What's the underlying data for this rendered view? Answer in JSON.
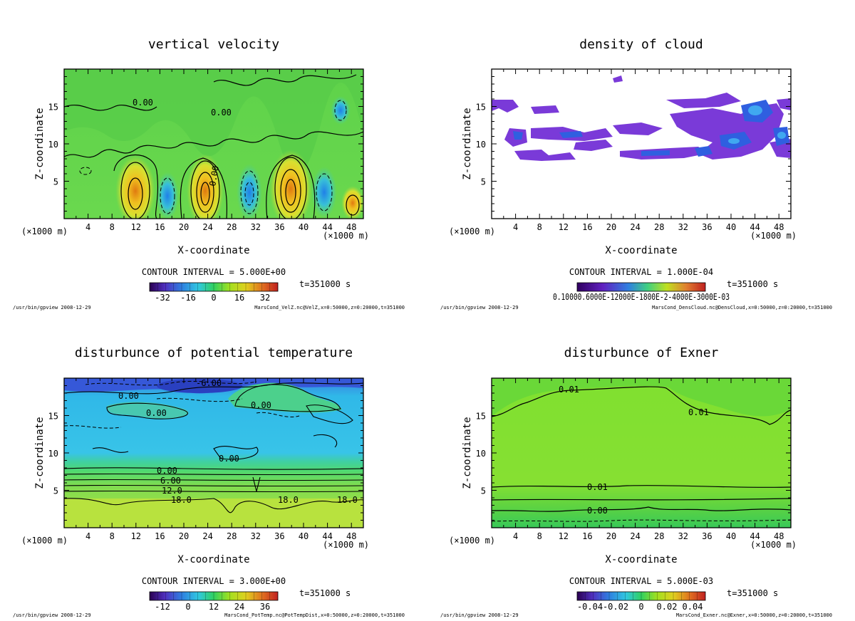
{
  "charts": [
    {
      "title": "vertical velocity",
      "xlabel": "X-coordinate",
      "ylabel": "Z-coordinate",
      "x_unit_left": "(×1000 m)",
      "x_unit_right": "(×1000 m)",
      "x_ticks": [
        "4",
        "8",
        "12",
        "16",
        "20",
        "24",
        "28",
        "32",
        "36",
        "40",
        "44",
        "48"
      ],
      "y_ticks": [
        "5",
        "10",
        "15"
      ],
      "contour_interval": "CONTOUR INTERVAL = 5.000E+00",
      "time": "t=351000 s",
      "colorbar_ticks": [
        "-32",
        "-16",
        "0",
        "16",
        "32"
      ],
      "contour_labels": [
        "0.00",
        "0.00",
        "0.00"
      ],
      "footer_left": "/usr/bin/gpview  2008-12-29",
      "footer_right": "MarsCond_VelZ.nc@VelZ,x=0:50000,z=0:20000,t=351000"
    },
    {
      "title": "density of cloud",
      "xlabel": "X-coordinate",
      "ylabel": "Z-coordinate",
      "x_unit_left": "(×1000 m)",
      "x_unit_right": "(×1000 m)",
      "x_ticks": [
        "4",
        "8",
        "12",
        "16",
        "20",
        "24",
        "28",
        "32",
        "36",
        "40",
        "44",
        "48"
      ],
      "y_ticks": [
        "5",
        "10",
        "15"
      ],
      "contour_interval": "CONTOUR INTERVAL = 1.000E-04",
      "time": "t=351000 s",
      "colorbar_label": "0.10000.6000E-12000E-1800E-2-4000E-3000E-03",
      "footer_left": "/usr/bin/gpview  2008-12-29",
      "footer_right": "MarsCond_DensCloud.nc@DensCloud,x=0:50000,z=0:20000,t=351000"
    },
    {
      "title": "disturbunce of potential temperature",
      "xlabel": "X-coordinate",
      "ylabel": "Z-coordinate",
      "x_unit_left": "(×1000 m)",
      "x_unit_right": "(×1000 m)",
      "x_ticks": [
        "4",
        "8",
        "12",
        "16",
        "20",
        "24",
        "28",
        "32",
        "36",
        "40",
        "44",
        "48"
      ],
      "y_ticks": [
        "5",
        "10",
        "15"
      ],
      "contour_interval": "CONTOUR INTERVAL = 3.000E+00",
      "time": "t=351000 s",
      "colorbar_ticks": [
        "-12",
        "0",
        "12",
        "24",
        "36"
      ],
      "contour_labels": [
        "-6.00",
        "0.00",
        "0.00",
        "0.00",
        "0.00",
        "0.00",
        "6.00",
        "12.0",
        "18.0",
        "18.0",
        "18.0"
      ],
      "footer_left": "/usr/bin/gpview  2008-12-29",
      "footer_right": "MarsCond_PotTemp.nc@PotTempDist,x=0:50000,z=0:20000,t=351000"
    },
    {
      "title": "disturbunce of Exner",
      "xlabel": "X-coordinate",
      "ylabel": "Z-coordinate",
      "x_unit_left": "(×1000 m)",
      "x_unit_right": "(×1000 m)",
      "x_ticks": [
        "4",
        "8",
        "12",
        "16",
        "20",
        "24",
        "28",
        "32",
        "36",
        "40",
        "44",
        "48"
      ],
      "y_ticks": [
        "5",
        "10",
        "15"
      ],
      "contour_interval": "CONTOUR INTERVAL = 5.000E-03",
      "time": "t=351000 s",
      "colorbar_ticks": [
        "-0.04",
        "-0.02",
        "0",
        "0.02",
        "0.04"
      ],
      "contour_labels": [
        "0.01",
        "0.01",
        "0.01",
        "0.00"
      ],
      "footer_left": "/usr/bin/gpview  2008-12-29",
      "footer_right": "MarsCond_Exner.nc@Exner,x=0:50000,z=0:20000,t=351000"
    }
  ],
  "chart_data": [
    {
      "type": "heatmap",
      "title": "vertical velocity",
      "xlabel": "X-coordinate",
      "ylabel": "Z-coordinate",
      "xlim": [
        0,
        50
      ],
      "ylim": [
        0,
        20
      ],
      "colorbar_range": [
        -40,
        40
      ],
      "contour_interval": 5.0
    },
    {
      "type": "heatmap",
      "title": "density of cloud",
      "xlabel": "X-coordinate",
      "ylabel": "Z-coordinate",
      "xlim": [
        0,
        50
      ],
      "ylim": [
        0,
        20
      ],
      "contour_interval": 0.0001
    },
    {
      "type": "heatmap",
      "title": "disturbunce of potential temperature",
      "xlabel": "X-coordinate",
      "ylabel": "Z-coordinate",
      "xlim": [
        0,
        50
      ],
      "ylim": [
        0,
        20
      ],
      "colorbar_range": [
        -18,
        42
      ],
      "contour_interval": 3.0
    },
    {
      "type": "heatmap",
      "title": "disturbunce of Exner",
      "xlabel": "X-coordinate",
      "ylabel": "Z-coordinate",
      "xlim": [
        0,
        50
      ],
      "ylim": [
        0,
        20
      ],
      "colorbar_range": [
        -0.05,
        0.05
      ],
      "contour_interval": 0.005
    }
  ]
}
